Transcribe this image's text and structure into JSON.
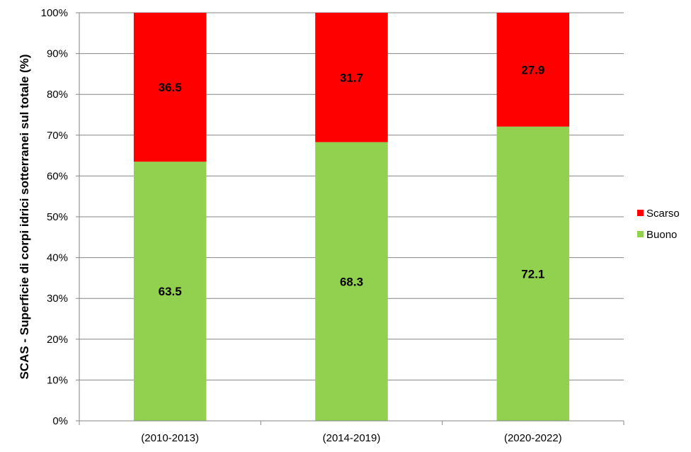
{
  "chart_data": {
    "type": "bar",
    "stacked": true,
    "categories": [
      "(2010-2013)",
      "(2014-2019)",
      "(2020-2022)"
    ],
    "series": [
      {
        "name": "Buono",
        "values": [
          63.5,
          68.3,
          72.1
        ],
        "color": "#92d050"
      },
      {
        "name": "Scarso",
        "values": [
          36.5,
          31.7,
          27.9
        ],
        "color": "#ff0000"
      }
    ],
    "title": "",
    "xlabel": "",
    "ylabel": "SCAS - Superficie di corpi idrici sotterranei sul totale (%)",
    "ylim": [
      0,
      100
    ],
    "yticks": [
      "0%",
      "10%",
      "20%",
      "30%",
      "40%",
      "50%",
      "60%",
      "70%",
      "80%",
      "90%",
      "100%"
    ],
    "grid": true,
    "legend": "right",
    "legend_order": [
      "Scarso",
      "Buono"
    ]
  }
}
